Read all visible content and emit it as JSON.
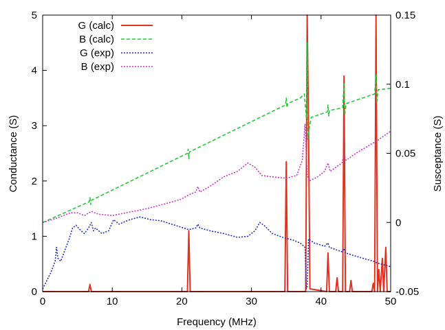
{
  "chart_data": {
    "type": "line",
    "title": "",
    "xlabel": "Frequency (MHz)",
    "ylabel_left": "Conductance (S)",
    "ylabel_right": "Susceptance (S)",
    "xlim": [
      0,
      50
    ],
    "ylim_left": [
      0,
      5
    ],
    "ylim_right": [
      -0.05,
      0.15
    ],
    "x_ticks": [
      "0",
      "10",
      "20",
      "30",
      "40",
      "50"
    ],
    "y_left_ticks": [
      "0",
      "1",
      "2",
      "3",
      "4",
      "5"
    ],
    "y_right_ticks": [
      "-0.05",
      "0",
      "0.05",
      "0.1",
      "0.15"
    ],
    "grid": false,
    "legend_position": "top-left",
    "series": [
      {
        "name": "G (calc)",
        "axis": "left",
        "color": "#e4301c",
        "style": "solid",
        "points": [
          [
            0,
            0.0
          ],
          [
            6.6,
            0.0
          ],
          [
            6.8,
            0.13
          ],
          [
            7.0,
            0.0
          ],
          [
            20.8,
            0.0
          ],
          [
            21.0,
            1.1
          ],
          [
            21.2,
            0.0
          ],
          [
            34.8,
            0.0
          ],
          [
            35.0,
            2.35
          ],
          [
            35.2,
            0.0
          ],
          [
            37.8,
            0.0
          ],
          [
            38.0,
            5.0
          ],
          [
            38.2,
            3.0
          ],
          [
            38.4,
            0.05
          ],
          [
            40.8,
            0.0
          ],
          [
            41.0,
            0.7
          ],
          [
            41.2,
            0.0
          ],
          [
            42.1,
            0.0
          ],
          [
            42.3,
            0.25
          ],
          [
            42.5,
            0.0
          ],
          [
            43.1,
            0.0
          ],
          [
            43.3,
            3.9
          ],
          [
            43.5,
            0.0
          ],
          [
            44.1,
            0.0
          ],
          [
            44.3,
            0.2
          ],
          [
            44.5,
            0.0
          ],
          [
            47.3,
            0.0
          ],
          [
            47.5,
            0.15
          ],
          [
            47.7,
            0.0
          ],
          [
            47.9,
            5.0
          ],
          [
            48.1,
            0.0
          ],
          [
            48.3,
            0.4
          ],
          [
            48.5,
            0.0
          ],
          [
            48.8,
            0.6
          ],
          [
            49.0,
            0.0
          ],
          [
            49.3,
            0.8
          ],
          [
            49.5,
            0.0
          ],
          [
            50.0,
            0.0
          ]
        ]
      },
      {
        "name": "B (calc)",
        "axis": "right",
        "color": "#25c93a",
        "style": "dashed",
        "points": [
          [
            0,
            0.0
          ],
          [
            6.7,
            0.015
          ],
          [
            6.8,
            0.018
          ],
          [
            6.9,
            0.013
          ],
          [
            7.0,
            0.016
          ],
          [
            20.8,
            0.05
          ],
          [
            20.9,
            0.053
          ],
          [
            21.0,
            0.046
          ],
          [
            21.1,
            0.051
          ],
          [
            34.9,
            0.085
          ],
          [
            35.0,
            0.09
          ],
          [
            35.1,
            0.083
          ],
          [
            35.2,
            0.086
          ],
          [
            37.0,
            0.09
          ],
          [
            37.6,
            0.093
          ],
          [
            37.9,
            0.075
          ],
          [
            38.0,
            0.13
          ],
          [
            38.1,
            0.06
          ],
          [
            38.3,
            0.068
          ],
          [
            38.6,
            0.076
          ],
          [
            40.9,
            0.08
          ],
          [
            41.0,
            0.085
          ],
          [
            41.1,
            0.077
          ],
          [
            41.2,
            0.081
          ],
          [
            43.1,
            0.083
          ],
          [
            43.3,
            0.1
          ],
          [
            43.4,
            0.078
          ],
          [
            43.6,
            0.086
          ],
          [
            47.7,
            0.093
          ],
          [
            47.9,
            0.107
          ],
          [
            48.0,
            0.087
          ],
          [
            48.2,
            0.096
          ],
          [
            50.0,
            0.097
          ]
        ]
      },
      {
        "name": "G (exp)",
        "axis": "left",
        "color": "#1d2fd0",
        "style": "dotted",
        "points": [
          [
            0,
            0.05
          ],
          [
            0.6,
            0.2
          ],
          [
            1.2,
            0.35
          ],
          [
            1.8,
            0.55
          ],
          [
            2.0,
            0.8
          ],
          [
            2.2,
            0.6
          ],
          [
            2.6,
            0.55
          ],
          [
            3.2,
            0.75
          ],
          [
            3.8,
            0.95
          ],
          [
            4.3,
            1.15
          ],
          [
            4.8,
            1.2
          ],
          [
            5.5,
            1.1
          ],
          [
            6.0,
            1.05
          ],
          [
            6.6,
            1.15
          ],
          [
            7.0,
            1.25
          ],
          [
            7.3,
            1.1
          ],
          [
            7.6,
            1.15
          ],
          [
            8.5,
            1.05
          ],
          [
            9.5,
            1.1
          ],
          [
            10.2,
            1.3
          ],
          [
            11.0,
            1.22
          ],
          [
            12.5,
            1.3
          ],
          [
            14.0,
            1.35
          ],
          [
            15.5,
            1.3
          ],
          [
            17.0,
            1.28
          ],
          [
            19.0,
            1.2
          ],
          [
            21.0,
            1.12
          ],
          [
            22.0,
            1.15
          ],
          [
            22.3,
            1.22
          ],
          [
            22.6,
            1.15
          ],
          [
            24.0,
            1.1
          ],
          [
            26.0,
            1.05
          ],
          [
            28.0,
            0.98
          ],
          [
            29.5,
            1.0
          ],
          [
            30.5,
            1.1
          ],
          [
            31.2,
            1.25
          ],
          [
            31.8,
            1.2
          ],
          [
            33.0,
            1.05
          ],
          [
            34.5,
            0.98
          ],
          [
            36.0,
            0.93
          ],
          [
            37.0,
            0.88
          ],
          [
            37.7,
            0.8
          ],
          [
            37.9,
            0.05
          ],
          [
            38.0,
            0.1
          ],
          [
            38.2,
            0.95
          ],
          [
            39.0,
            0.88
          ],
          [
            40.5,
            0.82
          ],
          [
            41.0,
            0.88
          ],
          [
            41.2,
            0.8
          ],
          [
            43.0,
            0.72
          ],
          [
            43.3,
            0.78
          ],
          [
            43.5,
            0.7
          ],
          [
            45.5,
            0.62
          ],
          [
            47.5,
            0.55
          ],
          [
            48.0,
            0.52
          ],
          [
            50.0,
            0.45
          ]
        ]
      },
      {
        "name": "B (exp)",
        "axis": "right",
        "color": "#cc33cc",
        "style": "dotted",
        "points": [
          [
            0,
            0.0
          ],
          [
            2.0,
            0.003
          ],
          [
            4.0,
            0.007
          ],
          [
            5.0,
            0.007
          ],
          [
            6.0,
            0.005
          ],
          [
            7.0,
            0.008
          ],
          [
            8.0,
            0.006
          ],
          [
            10.0,
            0.005
          ],
          [
            12.0,
            0.007
          ],
          [
            15.0,
            0.01
          ],
          [
            18.0,
            0.014
          ],
          [
            20.0,
            0.017
          ],
          [
            21.0,
            0.02
          ],
          [
            22.0,
            0.022
          ],
          [
            22.3,
            0.026
          ],
          [
            22.6,
            0.022
          ],
          [
            24.0,
            0.026
          ],
          [
            26.0,
            0.033
          ],
          [
            28.0,
            0.037
          ],
          [
            29.5,
            0.043
          ],
          [
            30.5,
            0.04
          ],
          [
            31.5,
            0.034
          ],
          [
            33.0,
            0.033
          ],
          [
            35.0,
            0.032
          ],
          [
            36.5,
            0.034
          ],
          [
            37.3,
            0.045
          ],
          [
            37.7,
            0.071
          ],
          [
            38.0,
            0.035
          ],
          [
            38.3,
            0.03
          ],
          [
            39.5,
            0.033
          ],
          [
            40.5,
            0.037
          ],
          [
            41.0,
            0.043
          ],
          [
            41.3,
            0.037
          ],
          [
            43.0,
            0.043
          ],
          [
            43.3,
            0.049
          ],
          [
            43.6,
            0.045
          ],
          [
            45.0,
            0.05
          ],
          [
            47.0,
            0.056
          ],
          [
            48.0,
            0.059
          ],
          [
            50.0,
            0.066
          ]
        ]
      }
    ]
  }
}
